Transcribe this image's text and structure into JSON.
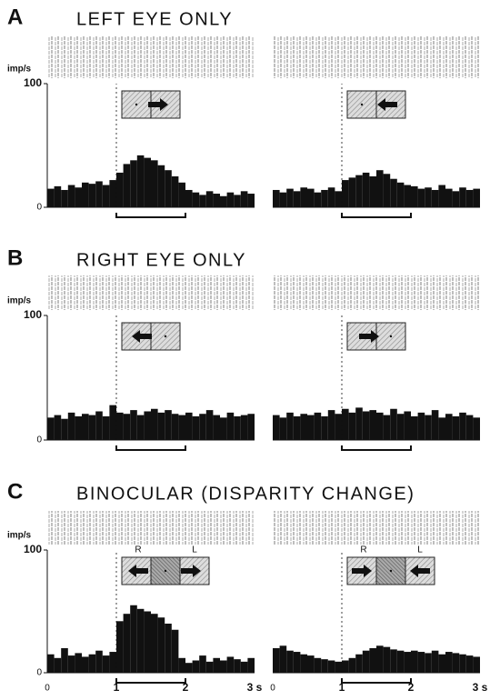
{
  "chart_data": [
    {
      "type": "histogram",
      "panel": "A",
      "title": "LEFT EYE ONLY",
      "ylabel": "imp/s",
      "ylim": [
        0,
        100
      ],
      "yticks": [
        0,
        100
      ],
      "xlim": [
        0,
        3
      ],
      "color": "#111111",
      "stimulus": [
        1,
        2
      ],
      "bins": [
        0,
        0.1,
        0.2,
        0.3,
        0.4,
        0.5,
        0.6,
        0.7,
        0.8,
        0.9,
        1,
        1.1,
        1.2,
        1.3,
        1.4,
        1.5,
        1.6,
        1.7,
        1.8,
        1.9,
        2,
        2.1,
        2.2,
        2.3,
        2.4,
        2.5,
        2.6,
        2.7,
        2.8,
        2.9,
        3
      ],
      "values": [
        15,
        17,
        14,
        18,
        16,
        20,
        19,
        21,
        18,
        22,
        28,
        35,
        38,
        42,
        40,
        38,
        34,
        30,
        25,
        20,
        14,
        12,
        10,
        13,
        11,
        9,
        12,
        10,
        13,
        11
      ]
    },
    {
      "type": "histogram",
      "xlim": [
        0,
        3
      ],
      "ylim": [
        0,
        100
      ],
      "color": "#111111",
      "stimulus": [
        1,
        2
      ],
      "bins": [
        0,
        0.1,
        0.2,
        0.3,
        0.4,
        0.5,
        0.6,
        0.7,
        0.8,
        0.9,
        1,
        1.1,
        1.2,
        1.3,
        1.4,
        1.5,
        1.6,
        1.7,
        1.8,
        1.9,
        2,
        2.1,
        2.2,
        2.3,
        2.4,
        2.5,
        2.6,
        2.7,
        2.8,
        2.9,
        3
      ],
      "values": [
        14,
        12,
        15,
        13,
        16,
        15,
        12,
        14,
        16,
        13,
        22,
        24,
        26,
        28,
        25,
        30,
        27,
        23,
        20,
        18,
        17,
        15,
        16,
        14,
        18,
        15,
        13,
        16,
        14,
        15
      ]
    },
    {
      "type": "histogram",
      "panel": "B",
      "title": "RIGHT EYE ONLY",
      "ylabel": "imp/s",
      "ylim": [
        0,
        100
      ],
      "yticks": [
        0,
        100
      ],
      "xlim": [
        0,
        3
      ],
      "color": "#111111",
      "stimulus": [
        1,
        2
      ],
      "bins": [
        0,
        0.1,
        0.2,
        0.3,
        0.4,
        0.5,
        0.6,
        0.7,
        0.8,
        0.9,
        1,
        1.1,
        1.2,
        1.3,
        1.4,
        1.5,
        1.6,
        1.7,
        1.8,
        1.9,
        2,
        2.1,
        2.2,
        2.3,
        2.4,
        2.5,
        2.6,
        2.7,
        2.8,
        2.9,
        3
      ],
      "values": [
        18,
        20,
        17,
        22,
        19,
        21,
        20,
        23,
        19,
        28,
        22,
        21,
        24,
        20,
        23,
        25,
        22,
        24,
        21,
        20,
        22,
        19,
        21,
        24,
        20,
        18,
        22,
        19,
        20,
        21
      ]
    },
    {
      "type": "histogram",
      "xlim": [
        0,
        3
      ],
      "ylim": [
        0,
        100
      ],
      "color": "#111111",
      "stimulus": [
        1,
        2
      ],
      "bins": [
        0,
        0.1,
        0.2,
        0.3,
        0.4,
        0.5,
        0.6,
        0.7,
        0.8,
        0.9,
        1,
        1.1,
        1.2,
        1.3,
        1.4,
        1.5,
        1.6,
        1.7,
        1.8,
        1.9,
        2,
        2.1,
        2.2,
        2.3,
        2.4,
        2.5,
        2.6,
        2.7,
        2.8,
        2.9,
        3
      ],
      "values": [
        20,
        18,
        22,
        19,
        21,
        20,
        22,
        19,
        24,
        21,
        25,
        22,
        26,
        23,
        24,
        22,
        20,
        25,
        21,
        23,
        19,
        22,
        20,
        24,
        18,
        21,
        19,
        22,
        20,
        18
      ]
    },
    {
      "type": "histogram",
      "panel": "C",
      "title": "BINOCULAR (DISPARITY CHANGE)",
      "ylabel": "imp/s",
      "ylim": [
        0,
        100
      ],
      "yticks": [
        0,
        100
      ],
      "xlim": [
        0,
        3
      ],
      "xticks": [
        0,
        1,
        2,
        {
          "value": 3,
          "label": "3 s"
        }
      ],
      "color": "#111111",
      "stimulus": [
        1,
        2
      ],
      "icon_labels": [
        "R",
        "L"
      ],
      "bins": [
        0,
        0.1,
        0.2,
        0.3,
        0.4,
        0.5,
        0.6,
        0.7,
        0.8,
        0.9,
        1,
        1.1,
        1.2,
        1.3,
        1.4,
        1.5,
        1.6,
        1.7,
        1.8,
        1.9,
        2,
        2.1,
        2.2,
        2.3,
        2.4,
        2.5,
        2.6,
        2.7,
        2.8,
        2.9,
        3
      ],
      "values": [
        15,
        12,
        20,
        14,
        16,
        13,
        15,
        18,
        14,
        17,
        42,
        48,
        55,
        52,
        50,
        48,
        45,
        40,
        35,
        12,
        8,
        10,
        14,
        9,
        12,
        10,
        13,
        11,
        9,
        12
      ]
    },
    {
      "type": "histogram",
      "xlim": [
        0,
        3
      ],
      "ylim": [
        0,
        100
      ],
      "xticks": [
        0,
        1,
        2,
        {
          "value": 3,
          "label": "3 s"
        }
      ],
      "color": "#111111",
      "stimulus": [
        1,
        2
      ],
      "icon_labels": [
        "R",
        "L"
      ],
      "bins": [
        0,
        0.1,
        0.2,
        0.3,
        0.4,
        0.5,
        0.6,
        0.7,
        0.8,
        0.9,
        1,
        1.1,
        1.2,
        1.3,
        1.4,
        1.5,
        1.6,
        1.7,
        1.8,
        1.9,
        2,
        2.1,
        2.2,
        2.3,
        2.4,
        2.5,
        2.6,
        2.7,
        2.8,
        2.9,
        3
      ],
      "values": [
        20,
        22,
        18,
        17,
        15,
        14,
        12,
        11,
        10,
        9,
        10,
        12,
        15,
        18,
        20,
        22,
        21,
        19,
        18,
        17,
        18,
        17,
        16,
        18,
        15,
        17,
        16,
        15,
        14,
        13
      ]
    }
  ]
}
